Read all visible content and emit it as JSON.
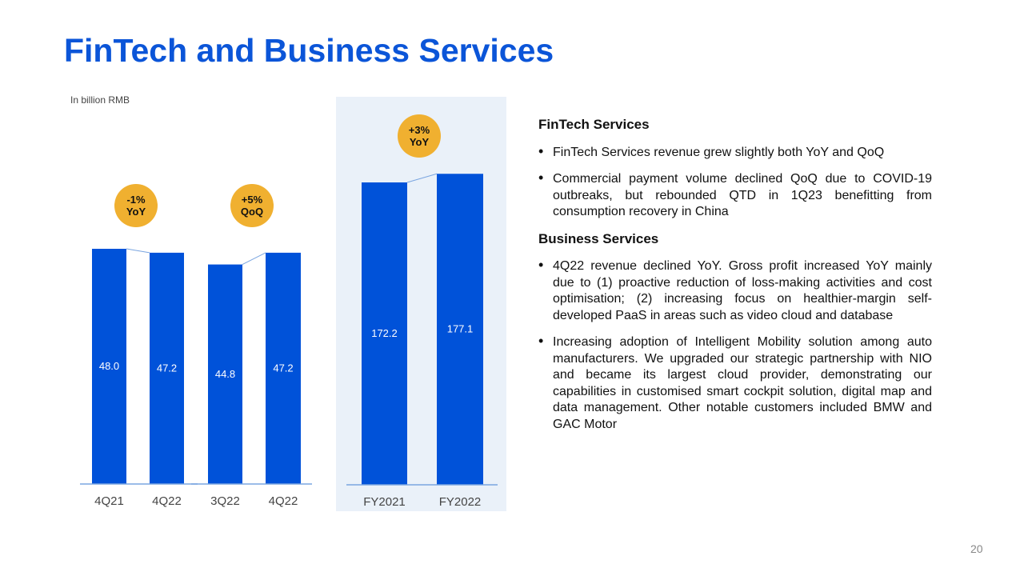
{
  "title": "FinTech and Business Services",
  "unit_label": "In billion RMB",
  "colors": {
    "bar": "#0052d9",
    "badge": "#f0b030",
    "connector": "#7aa5e0",
    "axis": "#7aa5e0",
    "panel": "#eaf1f9",
    "title": "#0b55d8"
  },
  "chart_data": [
    {
      "type": "bar",
      "categories": [
        "4Q21",
        "4Q22"
      ],
      "values": [
        48.0,
        47.2
      ],
      "labels": [
        "48.0",
        "47.2"
      ],
      "badge": [
        "-1%",
        "YoY"
      ],
      "ylabel": "In billion RMB"
    },
    {
      "type": "bar",
      "categories": [
        "3Q22",
        "4Q22"
      ],
      "values": [
        44.8,
        47.2
      ],
      "labels": [
        "44.8",
        "47.2"
      ],
      "badge": [
        "+5%",
        "QoQ"
      ],
      "ylabel": "In billion RMB"
    },
    {
      "type": "bar",
      "categories": [
        "FY2021",
        "FY2022"
      ],
      "values": [
        172.2,
        177.1
      ],
      "labels": [
        "172.2",
        "177.1"
      ],
      "badge": [
        "+3%",
        "YoY"
      ],
      "ylabel": "In billion RMB"
    }
  ],
  "sections": [
    {
      "heading": "FinTech Services",
      "bullets": [
        "FinTech Services revenue grew slightly both YoY and QoQ",
        "Commercial payment volume declined QoQ due to COVID-19 outbreaks, but rebounded QTD in 1Q23 benefitting from consumption recovery in China"
      ]
    },
    {
      "heading": "Business Services",
      "bullets": [
        "4Q22 revenue declined YoY. Gross profit increased YoY mainly due to (1) proactive reduction of loss-making activities and cost optimisation; (2) increasing focus on healthier-margin self-developed PaaS in areas such as video cloud and database",
        "Increasing adoption of Intelligent Mobility solution among auto manufacturers. We upgraded our strategic partnership with NIO and became its largest cloud provider, demonstrating our capabilities in customised smart cockpit solution, digital map and data management. Other notable customers included BMW and GAC Motor"
      ]
    }
  ],
  "page_number": "20"
}
